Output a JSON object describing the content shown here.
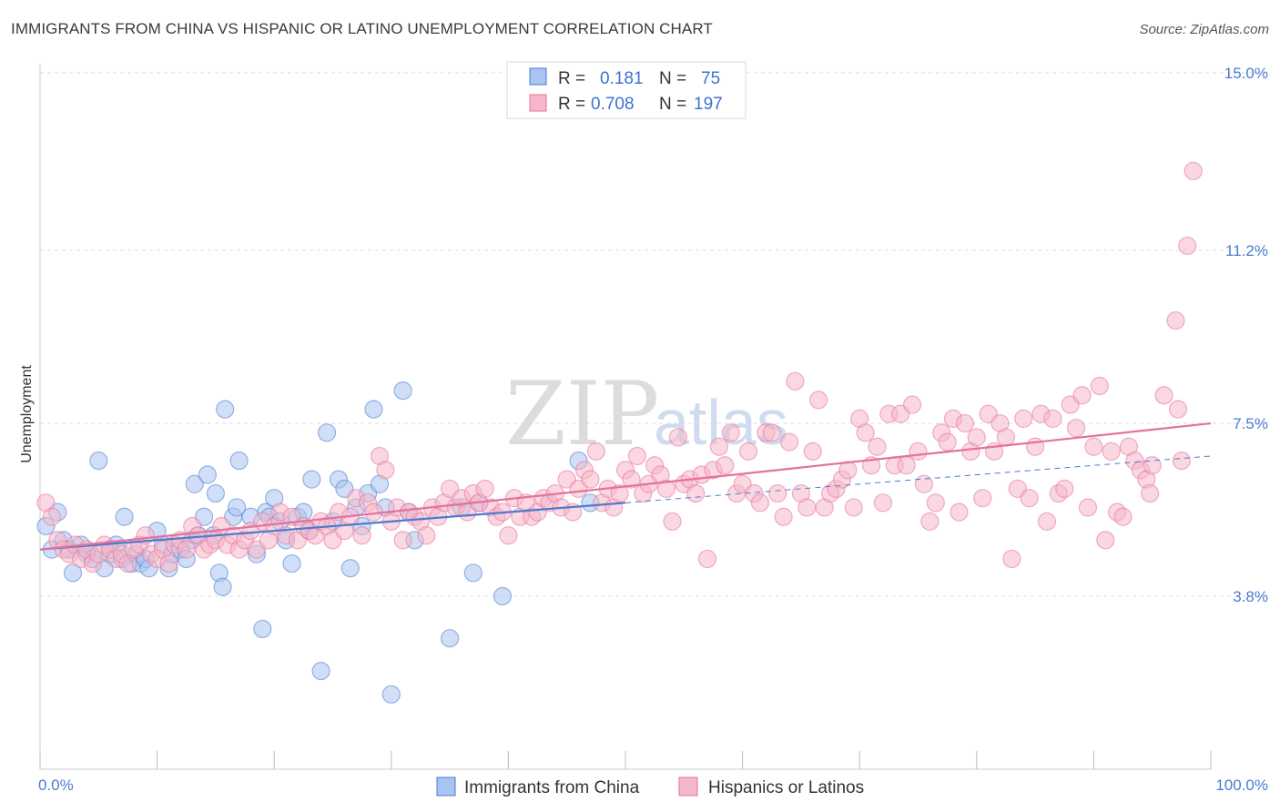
{
  "header": {
    "title": "IMMIGRANTS FROM CHINA VS HISPANIC OR LATINO UNEMPLOYMENT CORRELATION CHART",
    "source": "Source: ZipAtlas.com"
  },
  "watermark": {
    "zip": "ZIP",
    "atlas": "atlas"
  },
  "legend_top": {
    "rows": [
      {
        "r_label": "R =",
        "r_value": "0.181",
        "n_label": "N =",
        "n_value": "75",
        "color": "#a9c4f0"
      },
      {
        "r_label": "R =",
        "r_value": "0.708",
        "n_label": "N =",
        "n_value": "197",
        "color": "#f5b7c9"
      }
    ]
  },
  "legend_bottom": [
    {
      "label": "Immigrants from China",
      "color": "#a9c4f0"
    },
    {
      "label": "Hispanics or Latinos",
      "color": "#f5b7c9"
    }
  ],
  "chart_data": {
    "type": "scatter",
    "title": "IMMIGRANTS FROM CHINA VS HISPANIC OR LATINO UNEMPLOYMENT CORRELATION CHART",
    "xlabel": "",
    "ylabel": "Unemployment",
    "xlim": [
      0,
      100
    ],
    "ylim": [
      0,
      16
    ],
    "y_ticks": [
      {
        "value": 3.8,
        "label": "3.8%"
      },
      {
        "value": 7.5,
        "label": "7.5%"
      },
      {
        "value": 11.2,
        "label": "11.2%"
      },
      {
        "value": 15.0,
        "label": "15.0%"
      }
    ],
    "x_tick_labels": {
      "min": "0.0%",
      "max": "100.0%"
    },
    "grid": true,
    "legend_placement": "top-center",
    "series": [
      {
        "name": "Immigrants from China",
        "color": "#4a7bd0",
        "fill": "#a9c4f0",
        "trend": {
          "x": [
            0,
            50
          ],
          "y": [
            4.8,
            5.8
          ],
          "dashed_extension": {
            "x": [
              50,
              100
            ],
            "y": [
              5.8,
              6.8
            ]
          }
        },
        "points": [
          [
            0.5,
            5.3
          ],
          [
            1,
            4.8
          ],
          [
            1.5,
            5.6
          ],
          [
            2,
            5.0
          ],
          [
            2.5,
            4.8
          ],
          [
            2.8,
            4.3
          ],
          [
            3.5,
            4.9
          ],
          [
            4,
            4.7
          ],
          [
            4.5,
            4.6
          ],
          [
            5,
            6.7
          ],
          [
            5.5,
            4.4
          ],
          [
            6,
            4.7
          ],
          [
            6.5,
            4.9
          ],
          [
            7,
            4.6
          ],
          [
            7.2,
            5.5
          ],
          [
            7.8,
            4.5
          ],
          [
            8.2,
            4.7
          ],
          [
            8.6,
            4.5
          ],
          [
            9,
            4.6
          ],
          [
            9.3,
            4.4
          ],
          [
            10,
            5.2
          ],
          [
            10.5,
            4.9
          ],
          [
            11,
            4.4
          ],
          [
            11.3,
            4.7
          ],
          [
            12,
            4.8
          ],
          [
            12.5,
            4.6
          ],
          [
            13,
            5.0
          ],
          [
            13.2,
            6.2
          ],
          [
            13.5,
            5.1
          ],
          [
            14,
            5.5
          ],
          [
            14.3,
            6.4
          ],
          [
            14.8,
            5.1
          ],
          [
            15,
            6.0
          ],
          [
            15.3,
            4.3
          ],
          [
            15.6,
            4.0
          ],
          [
            15.8,
            7.8
          ],
          [
            16.5,
            5.5
          ],
          [
            16.8,
            5.7
          ],
          [
            17,
            6.7
          ],
          [
            18,
            5.5
          ],
          [
            18.5,
            4.7
          ],
          [
            19,
            3.1
          ],
          [
            19.3,
            5.6
          ],
          [
            19.6,
            5.5
          ],
          [
            20,
            5.9
          ],
          [
            20.5,
            5.4
          ],
          [
            21,
            5.0
          ],
          [
            21.5,
            4.5
          ],
          [
            22,
            5.5
          ],
          [
            22.5,
            5.6
          ],
          [
            23,
            5.2
          ],
          [
            23.2,
            6.3
          ],
          [
            24,
            2.2
          ],
          [
            24.5,
            7.3
          ],
          [
            25,
            5.4
          ],
          [
            25.5,
            6.3
          ],
          [
            26,
            6.1
          ],
          [
            26.5,
            4.4
          ],
          [
            27,
            5.7
          ],
          [
            27.5,
            5.3
          ],
          [
            28,
            6.0
          ],
          [
            28.5,
            7.8
          ],
          [
            29,
            6.2
          ],
          [
            29.5,
            5.7
          ],
          [
            30,
            1.7
          ],
          [
            31,
            8.2
          ],
          [
            31.5,
            5.6
          ],
          [
            32,
            5.0
          ],
          [
            35,
            2.9
          ],
          [
            36,
            5.7
          ],
          [
            37,
            4.3
          ],
          [
            37.5,
            5.8
          ],
          [
            39.5,
            3.8
          ],
          [
            46,
            6.7
          ],
          [
            47,
            5.8
          ]
        ]
      },
      {
        "name": "Hispanics or Latinos",
        "color": "#e4729a",
        "fill": "#f5b7c9",
        "trend": {
          "x": [
            0,
            100
          ],
          "y": [
            4.8,
            7.5
          ]
        },
        "points": [
          [
            0.5,
            5.8
          ],
          [
            1,
            5.5
          ],
          [
            1.5,
            5.0
          ],
          [
            2,
            4.8
          ],
          [
            2.5,
            4.7
          ],
          [
            3,
            4.9
          ],
          [
            3.5,
            4.6
          ],
          [
            4,
            4.8
          ],
          [
            4.5,
            4.5
          ],
          [
            5,
            4.7
          ],
          [
            5.5,
            4.9
          ],
          [
            6,
            4.8
          ],
          [
            6.5,
            4.6
          ],
          [
            7,
            4.7
          ],
          [
            7.5,
            4.5
          ],
          [
            8,
            4.8
          ],
          [
            8.5,
            4.9
          ],
          [
            9,
            5.1
          ],
          [
            9.5,
            4.7
          ],
          [
            10,
            4.6
          ],
          [
            10.5,
            4.8
          ],
          [
            11,
            4.5
          ],
          [
            11.5,
            4.9
          ],
          [
            12,
            5.0
          ],
          [
            12.5,
            4.8
          ],
          [
            13,
            5.3
          ],
          [
            13.5,
            5.1
          ],
          [
            14,
            4.8
          ],
          [
            14.5,
            4.9
          ],
          [
            15,
            5.0
          ],
          [
            15.5,
            5.3
          ],
          [
            16,
            4.9
          ],
          [
            16.5,
            5.1
          ],
          [
            17,
            4.8
          ],
          [
            17.5,
            5.0
          ],
          [
            18,
            5.2
          ],
          [
            18.5,
            4.8
          ],
          [
            19,
            5.4
          ],
          [
            19.5,
            5.0
          ],
          [
            20,
            5.3
          ],
          [
            20.5,
            5.6
          ],
          [
            21,
            5.1
          ],
          [
            21.5,
            5.5
          ],
          [
            22,
            5.0
          ],
          [
            22.5,
            5.3
          ],
          [
            23,
            5.2
          ],
          [
            23.5,
            5.1
          ],
          [
            24,
            5.4
          ],
          [
            24.5,
            5.3
          ],
          [
            25,
            5.0
          ],
          [
            25.5,
            5.6
          ],
          [
            26,
            5.2
          ],
          [
            26.5,
            5.5
          ],
          [
            27,
            5.9
          ],
          [
            27.5,
            5.1
          ],
          [
            28,
            5.8
          ],
          [
            28.5,
            5.6
          ],
          [
            29,
            6.8
          ],
          [
            29.5,
            6.5
          ],
          [
            30,
            5.4
          ],
          [
            30.5,
            5.7
          ],
          [
            31,
            5.0
          ],
          [
            31.5,
            5.6
          ],
          [
            32,
            5.5
          ],
          [
            32.5,
            5.4
          ],
          [
            33,
            5.1
          ],
          [
            33.5,
            5.7
          ],
          [
            34,
            5.5
          ],
          [
            34.5,
            5.8
          ],
          [
            35,
            6.1
          ],
          [
            35.5,
            5.7
          ],
          [
            36,
            5.9
          ],
          [
            36.5,
            5.6
          ],
          [
            37,
            6.0
          ],
          [
            37.5,
            5.8
          ],
          [
            38,
            6.1
          ],
          [
            38.5,
            5.7
          ],
          [
            39,
            5.5
          ],
          [
            39.5,
            5.6
          ],
          [
            40,
            5.1
          ],
          [
            40.5,
            5.9
          ],
          [
            41,
            5.5
          ],
          [
            41.5,
            5.8
          ],
          [
            42,
            5.5
          ],
          [
            42.5,
            5.6
          ],
          [
            43,
            5.9
          ],
          [
            43.5,
            5.8
          ],
          [
            44,
            6.0
          ],
          [
            44.5,
            5.7
          ],
          [
            45,
            6.3
          ],
          [
            45.5,
            5.6
          ],
          [
            46,
            6.1
          ],
          [
            46.5,
            6.5
          ],
          [
            47,
            6.3
          ],
          [
            47.5,
            6.9
          ],
          [
            48,
            5.8
          ],
          [
            48.5,
            6.1
          ],
          [
            49,
            5.7
          ],
          [
            49.5,
            6.0
          ],
          [
            50,
            6.5
          ],
          [
            50.5,
            6.3
          ],
          [
            51,
            6.8
          ],
          [
            51.5,
            6.0
          ],
          [
            52,
            6.2
          ],
          [
            52.5,
            6.6
          ],
          [
            53,
            6.4
          ],
          [
            53.5,
            6.1
          ],
          [
            54,
            5.4
          ],
          [
            54.5,
            7.2
          ],
          [
            55,
            6.2
          ],
          [
            55.5,
            6.3
          ],
          [
            56,
            6.0
          ],
          [
            56.5,
            6.4
          ],
          [
            57,
            4.6
          ],
          [
            57.5,
            6.5
          ],
          [
            58,
            7.0
          ],
          [
            58.5,
            6.6
          ],
          [
            59,
            7.3
          ],
          [
            59.5,
            6.0
          ],
          [
            60,
            6.2
          ],
          [
            60.5,
            6.9
          ],
          [
            61,
            6.0
          ],
          [
            61.5,
            5.8
          ],
          [
            62,
            7.3
          ],
          [
            62.5,
            7.3
          ],
          [
            63,
            6.0
          ],
          [
            63.5,
            5.5
          ],
          [
            64,
            7.1
          ],
          [
            64.5,
            8.4
          ],
          [
            65,
            6.0
          ],
          [
            65.5,
            5.7
          ],
          [
            66,
            6.9
          ],
          [
            66.5,
            8.0
          ],
          [
            67,
            5.7
          ],
          [
            67.5,
            6.0
          ],
          [
            68,
            6.1
          ],
          [
            68.5,
            6.3
          ],
          [
            69,
            6.5
          ],
          [
            69.5,
            5.7
          ],
          [
            70,
            7.6
          ],
          [
            70.5,
            7.3
          ],
          [
            71,
            6.6
          ],
          [
            71.5,
            7.0
          ],
          [
            72,
            5.8
          ],
          [
            72.5,
            7.7
          ],
          [
            73,
            6.6
          ],
          [
            73.5,
            7.7
          ],
          [
            74,
            6.6
          ],
          [
            74.5,
            7.9
          ],
          [
            75,
            6.9
          ],
          [
            75.5,
            6.2
          ],
          [
            76,
            5.4
          ],
          [
            76.5,
            5.8
          ],
          [
            77,
            7.3
          ],
          [
            77.5,
            7.1
          ],
          [
            78,
            7.6
          ],
          [
            78.5,
            5.6
          ],
          [
            79,
            7.5
          ],
          [
            79.5,
            6.9
          ],
          [
            80,
            7.2
          ],
          [
            80.5,
            5.9
          ],
          [
            81,
            7.7
          ],
          [
            81.5,
            6.9
          ],
          [
            82,
            7.5
          ],
          [
            82.5,
            7.2
          ],
          [
            83,
            4.6
          ],
          [
            83.5,
            6.1
          ],
          [
            84,
            7.6
          ],
          [
            84.5,
            5.9
          ],
          [
            85,
            7.0
          ],
          [
            85.5,
            7.7
          ],
          [
            86,
            5.4
          ],
          [
            86.5,
            7.6
          ],
          [
            87,
            6.0
          ],
          [
            87.5,
            6.1
          ],
          [
            88,
            7.9
          ],
          [
            88.5,
            7.4
          ],
          [
            89,
            8.1
          ],
          [
            89.5,
            5.7
          ],
          [
            90,
            7.0
          ],
          [
            90.5,
            8.3
          ],
          [
            91,
            5.0
          ],
          [
            91.5,
            6.9
          ],
          [
            92,
            5.6
          ],
          [
            92.5,
            5.5
          ],
          [
            93,
            7.0
          ],
          [
            93.5,
            6.7
          ],
          [
            94,
            6.5
          ],
          [
            94.5,
            6.3
          ],
          [
            95,
            6.6
          ],
          [
            96,
            8.1
          ],
          [
            97,
            9.7
          ],
          [
            98,
            11.3
          ],
          [
            98.5,
            12.9
          ],
          [
            97.5,
            6.7
          ],
          [
            94.8,
            6.0
          ],
          [
            97.2,
            7.8
          ]
        ]
      }
    ]
  }
}
